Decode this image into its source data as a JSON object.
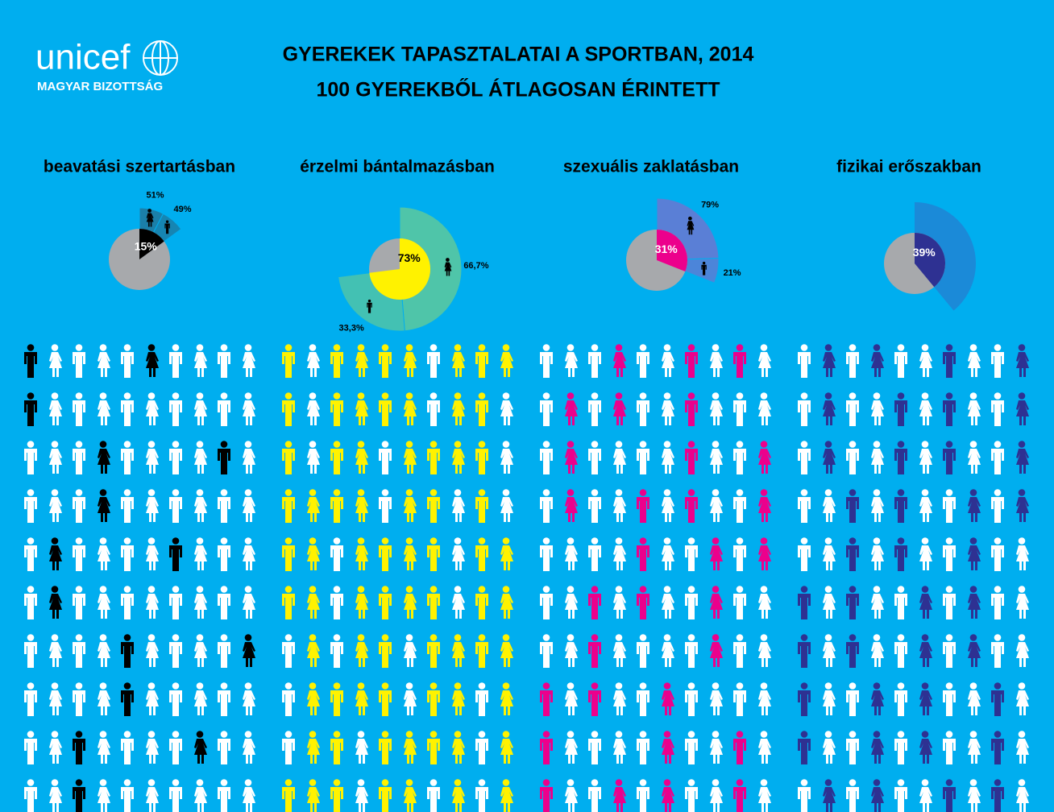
{
  "header": {
    "logo": "unicef",
    "subtitle": "MAGYAR BIZOTTSÁG",
    "title_lines": [
      "GYEREKEK TAPASZTALATAI A SPORTBAN, 2014",
      "100 GYEREKBŐL ÁTLAGOSAN ÉRINTETT"
    ]
  },
  "chart_data": [
    {
      "type": "pie",
      "title": "beavatási szertartásban",
      "values": [
        15
      ],
      "value_labels": [
        "15%"
      ],
      "color": "#000000",
      "label_color": "#ffffff",
      "rest_color": "#a7a9ac",
      "split": {
        "values": [
          51,
          49
        ],
        "value_labels": [
          "51%",
          "49%"
        ],
        "color": "#1b7fa8"
      }
    },
    {
      "type": "pie",
      "title": "érzelmi bántalmazásban",
      "values": [
        73
      ],
      "value_labels": [
        "73%"
      ],
      "color": "#fff200",
      "label_color": "#000000",
      "rest_color": "#a7a9ac",
      "split": {
        "values": [
          66.7,
          33.3
        ],
        "value_labels": [
          "66,7%",
          "33,3%"
        ],
        "color": "#4fc5a9"
      }
    },
    {
      "type": "pie",
      "title": "szexuális zaklatásban",
      "values": [
        31
      ],
      "value_labels": [
        "31%"
      ],
      "color": "#ec008c",
      "label_color": "#ffffff",
      "rest_color": "#a7a9ac",
      "split": {
        "values": [
          79,
          21
        ],
        "value_labels": [
          "79%",
          "21%"
        ],
        "color": "#5a7fd6"
      }
    },
    {
      "type": "pie",
      "title": "fizikai erőszakban",
      "values": [
        39
      ],
      "value_labels": [
        "39%"
      ],
      "color": "#2e3192",
      "label_color": "#ffffff",
      "rest_color": "#a7a9ac",
      "outer_color": "#1b8ad8"
    }
  ]
}
